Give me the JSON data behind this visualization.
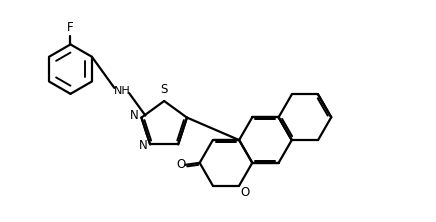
{
  "bg_color": "#ffffff",
  "line_color": "#000000",
  "lw": 1.6,
  "figsize": [
    4.36,
    2.22
  ],
  "dpi": 100,
  "xlim": [
    0,
    10.9
  ],
  "ylim": [
    0,
    5.0
  ]
}
